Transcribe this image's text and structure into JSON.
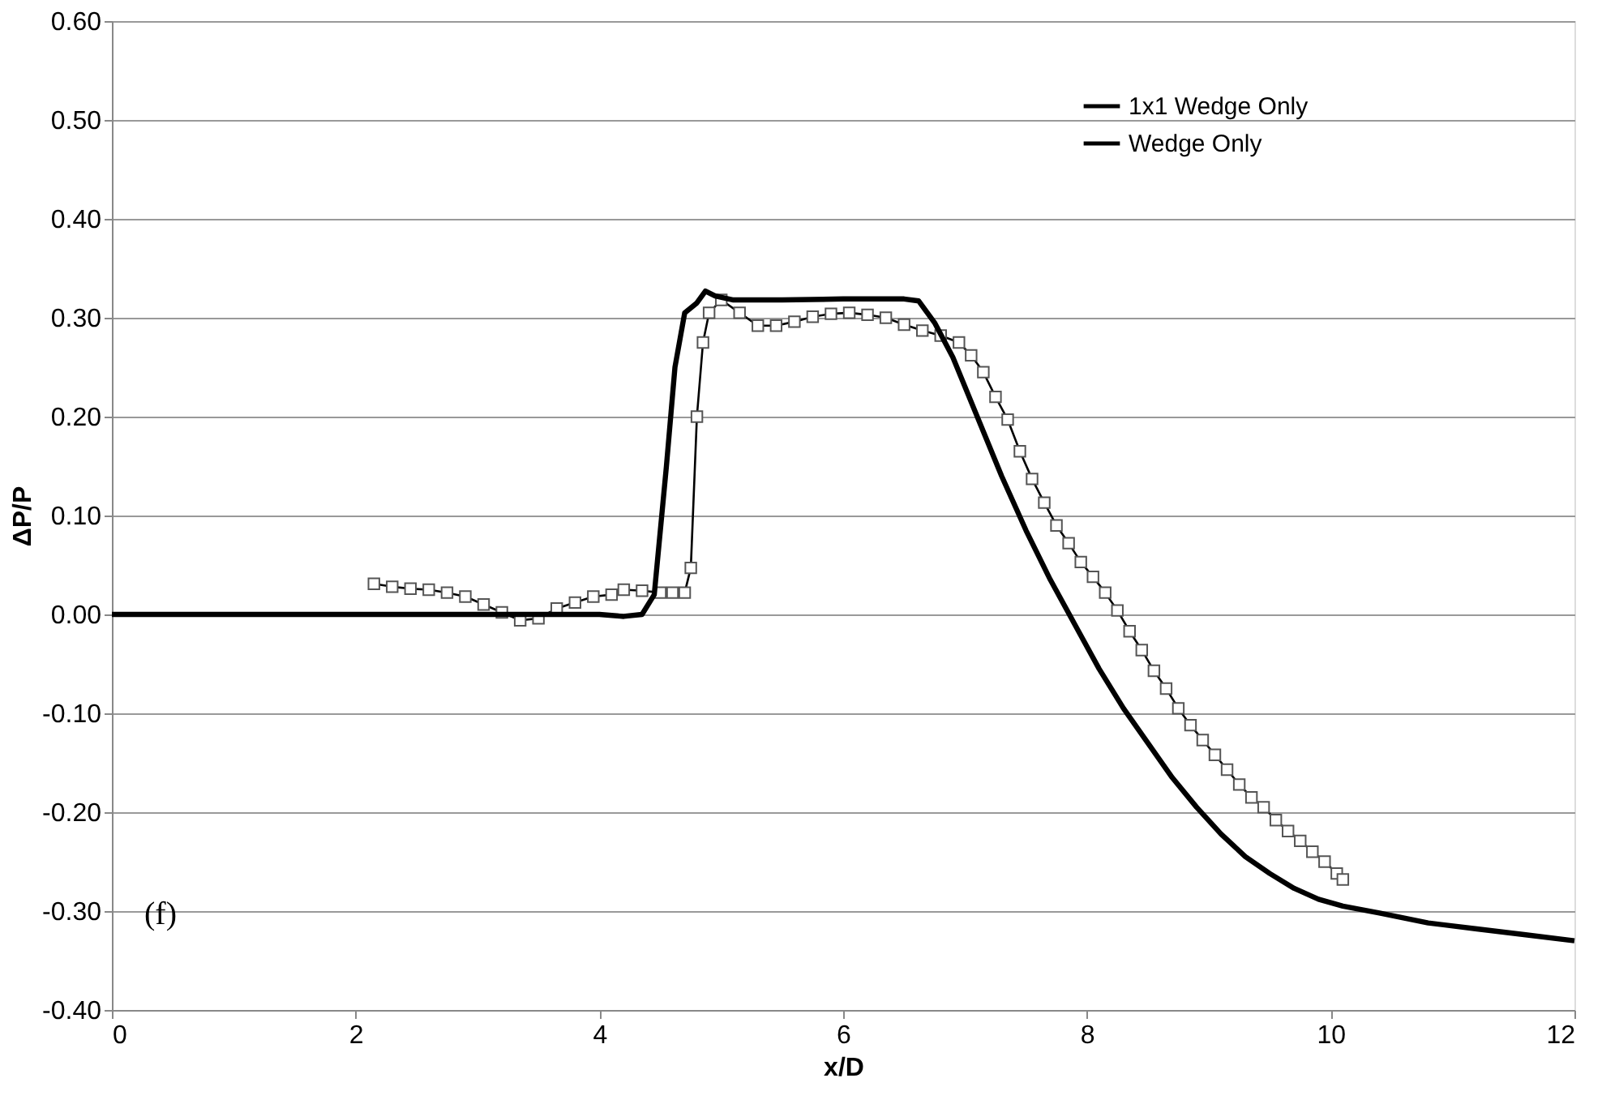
{
  "chart_data": {
    "type": "line",
    "xlabel": "x/D",
    "ylabel": "ΔP/P",
    "xlim": [
      0,
      12
    ],
    "xticks": [
      0,
      2,
      4,
      6,
      8,
      10,
      12
    ],
    "ylim": [
      -0.4,
      0.6
    ],
    "yticks": [
      {
        "value": -0.4,
        "label": "-0.40"
      },
      {
        "value": -0.3,
        "label": "-0.30"
      },
      {
        "value": -0.2,
        "label": "-0.20"
      },
      {
        "value": -0.1,
        "label": "-0.10"
      },
      {
        "value": 0,
        "label": "0.00"
      },
      {
        "value": 0.1,
        "label": "0.10"
      },
      {
        "value": 0.2,
        "label": "0.20"
      },
      {
        "value": 0.3,
        "label": "0.30"
      },
      {
        "value": 0.4,
        "label": "0.40"
      },
      {
        "value": 0.5,
        "label": "0.50"
      },
      {
        "value": 0.6,
        "label": "0.60"
      }
    ],
    "grid": "y",
    "legend": "top right",
    "annotations": [
      "(f)"
    ],
    "series": [
      {
        "name": "1x1 Wedge Only",
        "color": "#000000",
        "marker": "square",
        "x": [
          2.15,
          2.3,
          2.45,
          2.6,
          2.75,
          2.9,
          3.05,
          3.2,
          3.35,
          3.5,
          3.65,
          3.8,
          3.95,
          4.1,
          4.2,
          4.35,
          4.5,
          4.6,
          4.7,
          4.75,
          4.8,
          4.85,
          4.9,
          5.0,
          5.15,
          5.3,
          5.45,
          5.6,
          5.75,
          5.9,
          6.05,
          6.2,
          6.35,
          6.5,
          6.65,
          6.8,
          6.95,
          7.05,
          7.15,
          7.25,
          7.35,
          7.45,
          7.55,
          7.65,
          7.75,
          7.85,
          7.95,
          8.05,
          8.15,
          8.25,
          8.35,
          8.45,
          8.55,
          8.65,
          8.75,
          8.85,
          8.95,
          9.05,
          9.15,
          9.25,
          9.35,
          9.45,
          9.55,
          9.65,
          9.75,
          9.85,
          9.95,
          10.05,
          10.1
        ],
        "values": [
          0.031,
          0.028,
          0.026,
          0.025,
          0.022,
          0.018,
          0.01,
          0.002,
          -0.006,
          -0.004,
          0.006,
          0.012,
          0.018,
          0.02,
          0.025,
          0.024,
          0.022,
          0.022,
          0.022,
          0.047,
          0.2,
          0.275,
          0.305,
          0.318,
          0.305,
          0.292,
          0.292,
          0.296,
          0.301,
          0.304,
          0.305,
          0.303,
          0.3,
          0.293,
          0.287,
          0.282,
          0.275,
          0.262,
          0.245,
          0.22,
          0.197,
          0.165,
          0.137,
          0.113,
          0.09,
          0.072,
          0.053,
          0.038,
          0.022,
          0.004,
          -0.017,
          -0.036,
          -0.057,
          -0.075,
          -0.095,
          -0.112,
          -0.127,
          -0.142,
          -0.157,
          -0.172,
          -0.185,
          -0.195,
          -0.208,
          -0.219,
          -0.229,
          -0.24,
          -0.25,
          -0.262,
          -0.268
        ]
      },
      {
        "name": "Wedge Only",
        "color": "#000000",
        "marker": "none",
        "x": [
          0,
          4.0,
          4.2,
          4.35,
          4.45,
          4.55,
          4.62,
          4.7,
          4.8,
          4.87,
          4.95,
          5.1,
          5.5,
          6.0,
          6.5,
          6.62,
          6.75,
          6.9,
          7.1,
          7.3,
          7.5,
          7.7,
          7.9,
          8.1,
          8.3,
          8.5,
          8.7,
          8.9,
          9.1,
          9.3,
          9.5,
          9.7,
          9.9,
          10.1,
          10.4,
          10.8,
          11.2,
          11.6,
          12
        ],
        "values": [
          0,
          0,
          -0.002,
          0.0,
          0.02,
          0.15,
          0.25,
          0.305,
          0.315,
          0.327,
          0.322,
          0.318,
          0.318,
          0.319,
          0.319,
          0.317,
          0.295,
          0.26,
          0.2,
          0.14,
          0.085,
          0.035,
          -0.01,
          -0.055,
          -0.095,
          -0.13,
          -0.165,
          -0.195,
          -0.222,
          -0.245,
          -0.262,
          -0.277,
          -0.288,
          -0.295,
          -0.302,
          -0.312,
          -0.318,
          -0.324,
          -0.33
        ]
      }
    ]
  }
}
